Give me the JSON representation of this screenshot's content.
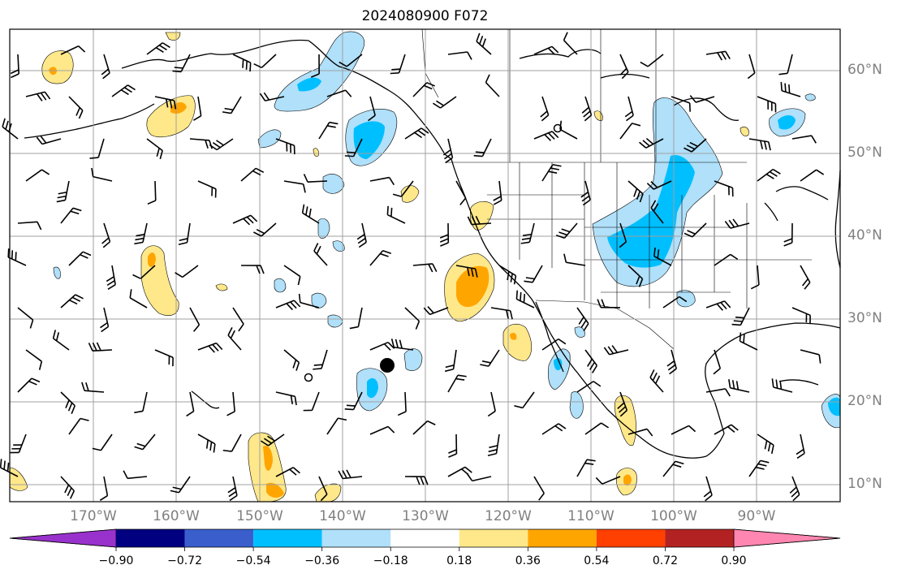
{
  "title": "2024080900 F072",
  "map": {
    "projection": "cylindrical",
    "lon_range": [
      "180°W",
      "80°W"
    ],
    "lat_range": [
      "8°N",
      "65°N"
    ],
    "grid": true,
    "gridline_color": "#a0a0a0",
    "ocean_color": "#ffffff",
    "coast_color": "#000000",
    "marker": {
      "lon": -134.5,
      "lat": 24.5,
      "type": "filled-circle"
    }
  },
  "lon_labels": [
    "170°W",
    "160°W",
    "150°W",
    "140°W",
    "130°W",
    "120°W",
    "110°W",
    "100°W",
    "90°W"
  ],
  "lat_labels": [
    "60°N",
    "50°N",
    "40°N",
    "30°N",
    "20°N",
    "10°N"
  ],
  "colorbar": {
    "ticks": [
      "−0.90",
      "−0.72",
      "−0.54",
      "−0.36",
      "−0.18",
      "0.18",
      "0.36",
      "0.54",
      "0.72",
      "0.90"
    ],
    "colors": [
      "#9932cc",
      "#000080",
      "#3a5fcd",
      "#00bfff",
      "#b0e0fa",
      "#ffffff",
      "#ffe88a",
      "#ffa500",
      "#ff4000",
      "#b22222",
      "#ff86b0"
    ],
    "extend": "both"
  },
  "contour_colors": {
    "neg_light": "#b0e0fa",
    "neg_mid": "#00bfff",
    "pos_light": "#ffe88a",
    "pos_mid": "#ffa500"
  }
}
